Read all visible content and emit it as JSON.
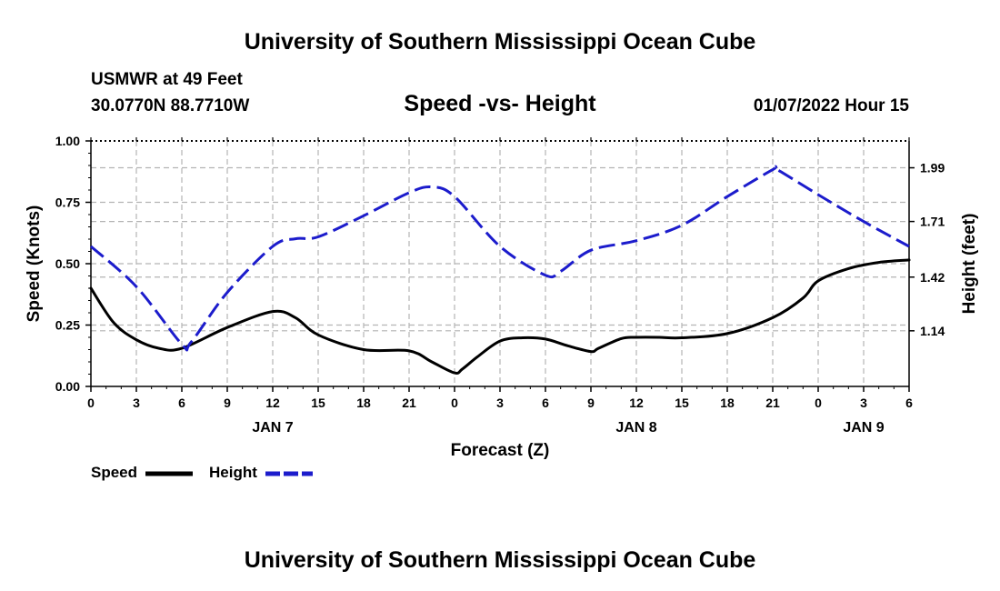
{
  "page": {
    "title_top": "University of Southern Mississippi Ocean Cube",
    "title_bottom": "University of Southern Mississippi Ocean Cube",
    "station": "USMWR at 49 Feet",
    "coords": "30.0770N  88.7710W",
    "datetime": "01/07/2022 Hour 15"
  },
  "chart_data": {
    "type": "line",
    "title": "Speed -vs- Height",
    "xlabel": "Forecast (Z)",
    "ylabel": "Speed (Knots)",
    "y2label": "Height (feet)",
    "ylim": [
      0,
      1
    ],
    "y2lim": [
      0.85,
      2.13
    ],
    "x_range": [
      0,
      54
    ],
    "x_ticks": [
      0,
      3,
      6,
      9,
      12,
      15,
      18,
      21,
      24,
      27,
      30,
      33,
      36,
      39,
      42,
      45,
      48,
      51,
      54
    ],
    "x_tick_labels": [
      "0",
      "3",
      "6",
      "9",
      "12",
      "15",
      "18",
      "21",
      "0",
      "3",
      "6",
      "9",
      "12",
      "15",
      "18",
      "21",
      "0",
      "3",
      "6"
    ],
    "date_labels": [
      {
        "x": 12,
        "label": "JAN 7"
      },
      {
        "x": 36,
        "label": "JAN 8"
      },
      {
        "x": 51,
        "label": "JAN 9"
      }
    ],
    "y_ticks": [
      0,
      0.25,
      0.5,
      0.75,
      1
    ],
    "y_tick_labels": [
      "0.00",
      "0.25",
      "0.50",
      "0.75",
      "1.00"
    ],
    "y2_ticks": [
      1.14,
      1.42,
      1.71,
      1.99
    ],
    "y2_tick_labels": [
      "1.14",
      "1.42",
      "1.71",
      "1.99"
    ],
    "series": [
      {
        "name": "Speed",
        "axis": "left",
        "color": "#000000",
        "style": "solid",
        "x": [
          0,
          1.5,
          3,
          4.5,
          6,
          9,
          12,
          13.5,
          15,
          18,
          21,
          22.5,
          24,
          24.5,
          25.5,
          27,
          28.5,
          30,
          31.5,
          33,
          33.5,
          35,
          36,
          37.5,
          39,
          42,
          45,
          47,
          48,
          50,
          52,
          54
        ],
        "values": [
          0.4,
          0.26,
          0.19,
          0.155,
          0.155,
          0.24,
          0.305,
          0.28,
          0.21,
          0.15,
          0.145,
          0.1,
          0.055,
          0.07,
          0.12,
          0.185,
          0.198,
          0.193,
          0.165,
          0.142,
          0.155,
          0.195,
          0.2,
          0.2,
          0.198,
          0.215,
          0.28,
          0.36,
          0.43,
          0.48,
          0.505,
          0.515
        ]
      },
      {
        "name": "Height",
        "axis": "right",
        "color": "#1c1ccc",
        "style": "dashed",
        "x": [
          0,
          3,
          6,
          6.6,
          9,
          12,
          13.5,
          15,
          18,
          21,
          22.5,
          24,
          27,
          30,
          31,
          33,
          36,
          39,
          42,
          45,
          45.3,
          48,
          51,
          54
        ],
        "values": [
          1.58,
          1.37,
          1.07,
          1.08,
          1.34,
          1.58,
          1.62,
          1.63,
          1.74,
          1.86,
          1.89,
          1.84,
          1.58,
          1.43,
          1.45,
          1.56,
          1.61,
          1.69,
          1.84,
          1.98,
          1.98,
          1.85,
          1.71,
          1.58
        ]
      }
    ],
    "legend": [
      {
        "label": "Speed",
        "color": "#000000",
        "style": "solid"
      },
      {
        "label": "Height",
        "color": "#1c1ccc",
        "style": "dashed"
      }
    ]
  }
}
